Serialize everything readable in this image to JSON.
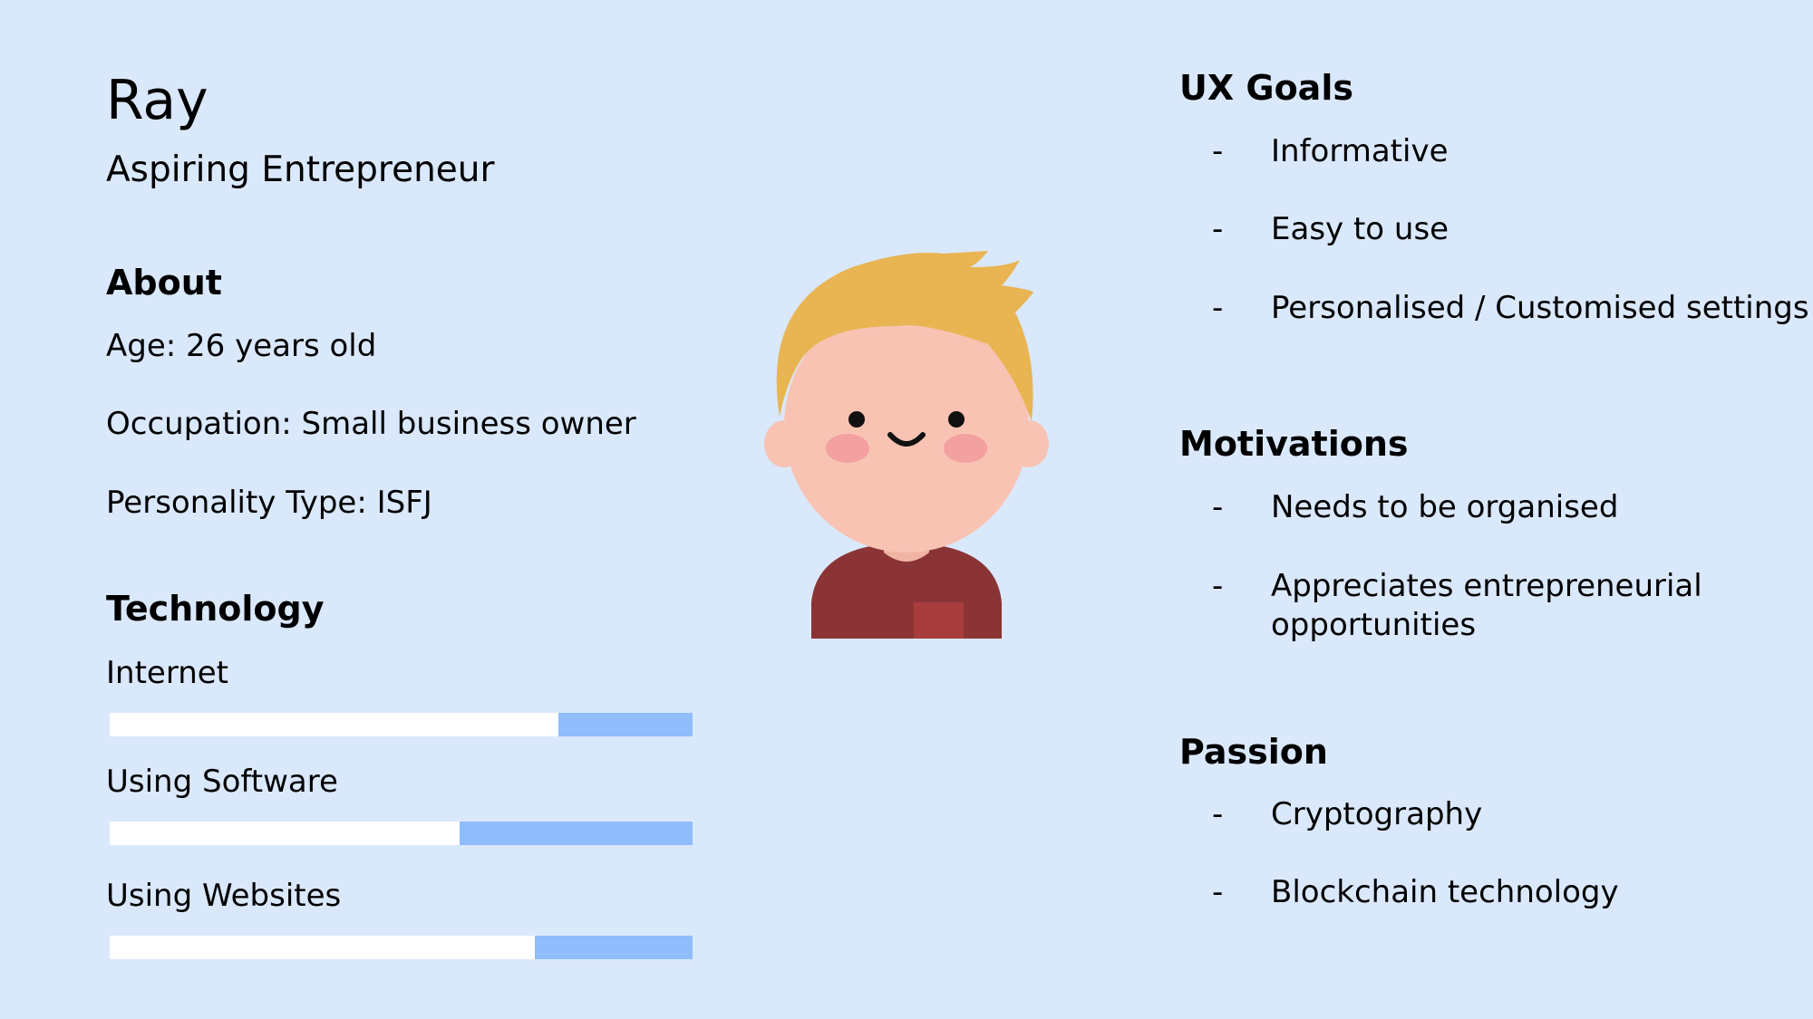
{
  "persona": {
    "name": "Ray",
    "title": "Aspiring Entrepreneur"
  },
  "about": {
    "heading": "About",
    "age": "Age: 26 years old",
    "occupation": "Occupation: Small business owner",
    "personality": "Personality Type: ISFJ"
  },
  "technology": {
    "heading": "Technology",
    "items": [
      {
        "label": "Internet",
        "level": 0.23
      },
      {
        "label": "Using Software",
        "level": 0.4
      },
      {
        "label": "Using Websites",
        "level": 0.27
      }
    ]
  },
  "ux_goals": {
    "heading": "UX Goals",
    "items": [
      "Informative",
      "Easy to use",
      "Personalised / Customised settings"
    ]
  },
  "motivations": {
    "heading": "Motivations",
    "items": [
      "Needs to be organised",
      "Appreciates entrepreneurial opportunities"
    ]
  },
  "passion": {
    "heading": "Passion",
    "items": [
      "Cryptography",
      "Blockchain technology"
    ]
  },
  "bullet_symbol": "-",
  "colors": {
    "background": "#dae8fc",
    "bar_track": "#ffffff",
    "bar_fill": "#90bdfc",
    "hair": "#e8b552",
    "skin": "#f8c3b3",
    "cheeks": "#f3a0a0",
    "shirt": "#8b3436"
  },
  "icons": {
    "avatar": "cartoon-boy-avatar-icon"
  }
}
